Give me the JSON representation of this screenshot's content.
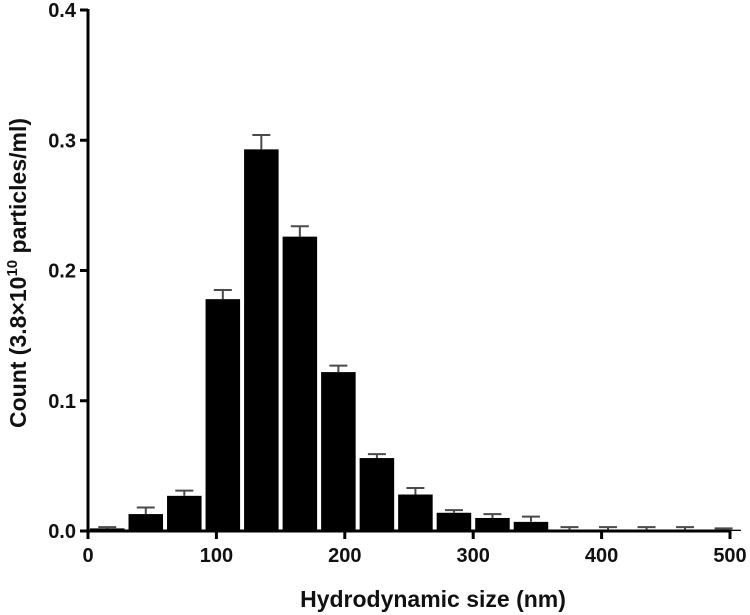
{
  "chart_data": {
    "type": "bar",
    "xlabel": "Hydrodynamic size (nm)",
    "ylabel_parts": {
      "prefix": "Count (3.8×10",
      "exponent": "10",
      "suffix": " particles/ml)"
    },
    "xlim": [
      0,
      500
    ],
    "ylim": [
      0,
      0.4
    ],
    "x_ticks": [
      0,
      100,
      200,
      300,
      400,
      500
    ],
    "y_ticks": [
      0.0,
      0.1,
      0.2,
      0.3,
      0.4
    ],
    "y_tick_labels": [
      "0.0",
      "0.1",
      "0.2",
      "0.3",
      "0.4"
    ],
    "bin_width": 30,
    "bars": [
      {
        "x": 15,
        "value": 0.002,
        "error": 0.001
      },
      {
        "x": 45,
        "value": 0.013,
        "error": 0.005
      },
      {
        "x": 75,
        "value": 0.027,
        "error": 0.004
      },
      {
        "x": 105,
        "value": 0.178,
        "error": 0.007
      },
      {
        "x": 135,
        "value": 0.293,
        "error": 0.011
      },
      {
        "x": 165,
        "value": 0.226,
        "error": 0.008
      },
      {
        "x": 195,
        "value": 0.122,
        "error": 0.005
      },
      {
        "x": 225,
        "value": 0.056,
        "error": 0.003
      },
      {
        "x": 255,
        "value": 0.028,
        "error": 0.005
      },
      {
        "x": 285,
        "value": 0.014,
        "error": 0.002
      },
      {
        "x": 315,
        "value": 0.01,
        "error": 0.003
      },
      {
        "x": 345,
        "value": 0.007,
        "error": 0.004
      },
      {
        "x": 375,
        "value": 0.001,
        "error": 0.002
      },
      {
        "x": 405,
        "value": 0.001,
        "error": 0.002
      },
      {
        "x": 435,
        "value": 0.001,
        "error": 0.002
      },
      {
        "x": 465,
        "value": 0.001,
        "error": 0.002
      },
      {
        "x": 495,
        "value": 0.001,
        "error": 0.001
      }
    ]
  }
}
